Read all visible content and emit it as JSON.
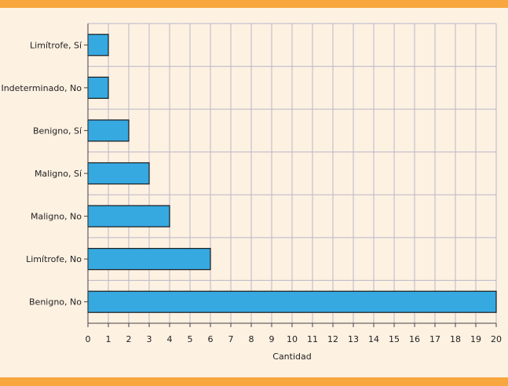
{
  "chart_data": {
    "type": "bar",
    "orientation": "horizontal",
    "title": "",
    "xlabel": "Cantidad",
    "ylabel": "",
    "categories": [
      "Limítrofe, Sí",
      "Indeterminado, No",
      "Benigno, Sí",
      "Maligno, Sí",
      "Maligno, No",
      "Limítrofe, No",
      "Benigno, No"
    ],
    "values": [
      1,
      1,
      2,
      3,
      4,
      6,
      20
    ],
    "xlim": [
      0,
      20
    ],
    "xticks": [
      "0",
      "1",
      "2",
      "3",
      "4",
      "5",
      "6",
      "7",
      "8",
      "9",
      "10",
      "11",
      "12",
      "13",
      "14",
      "15",
      "16",
      "17",
      "18",
      "19",
      "20"
    ],
    "grid": true,
    "legend": "none",
    "colors": {
      "bar": "#36A9E1",
      "bar_edge": "#1A1A1A",
      "grid": "#B9B6C8",
      "background": "#FDF1E2",
      "band": "#F8A63E"
    }
  }
}
